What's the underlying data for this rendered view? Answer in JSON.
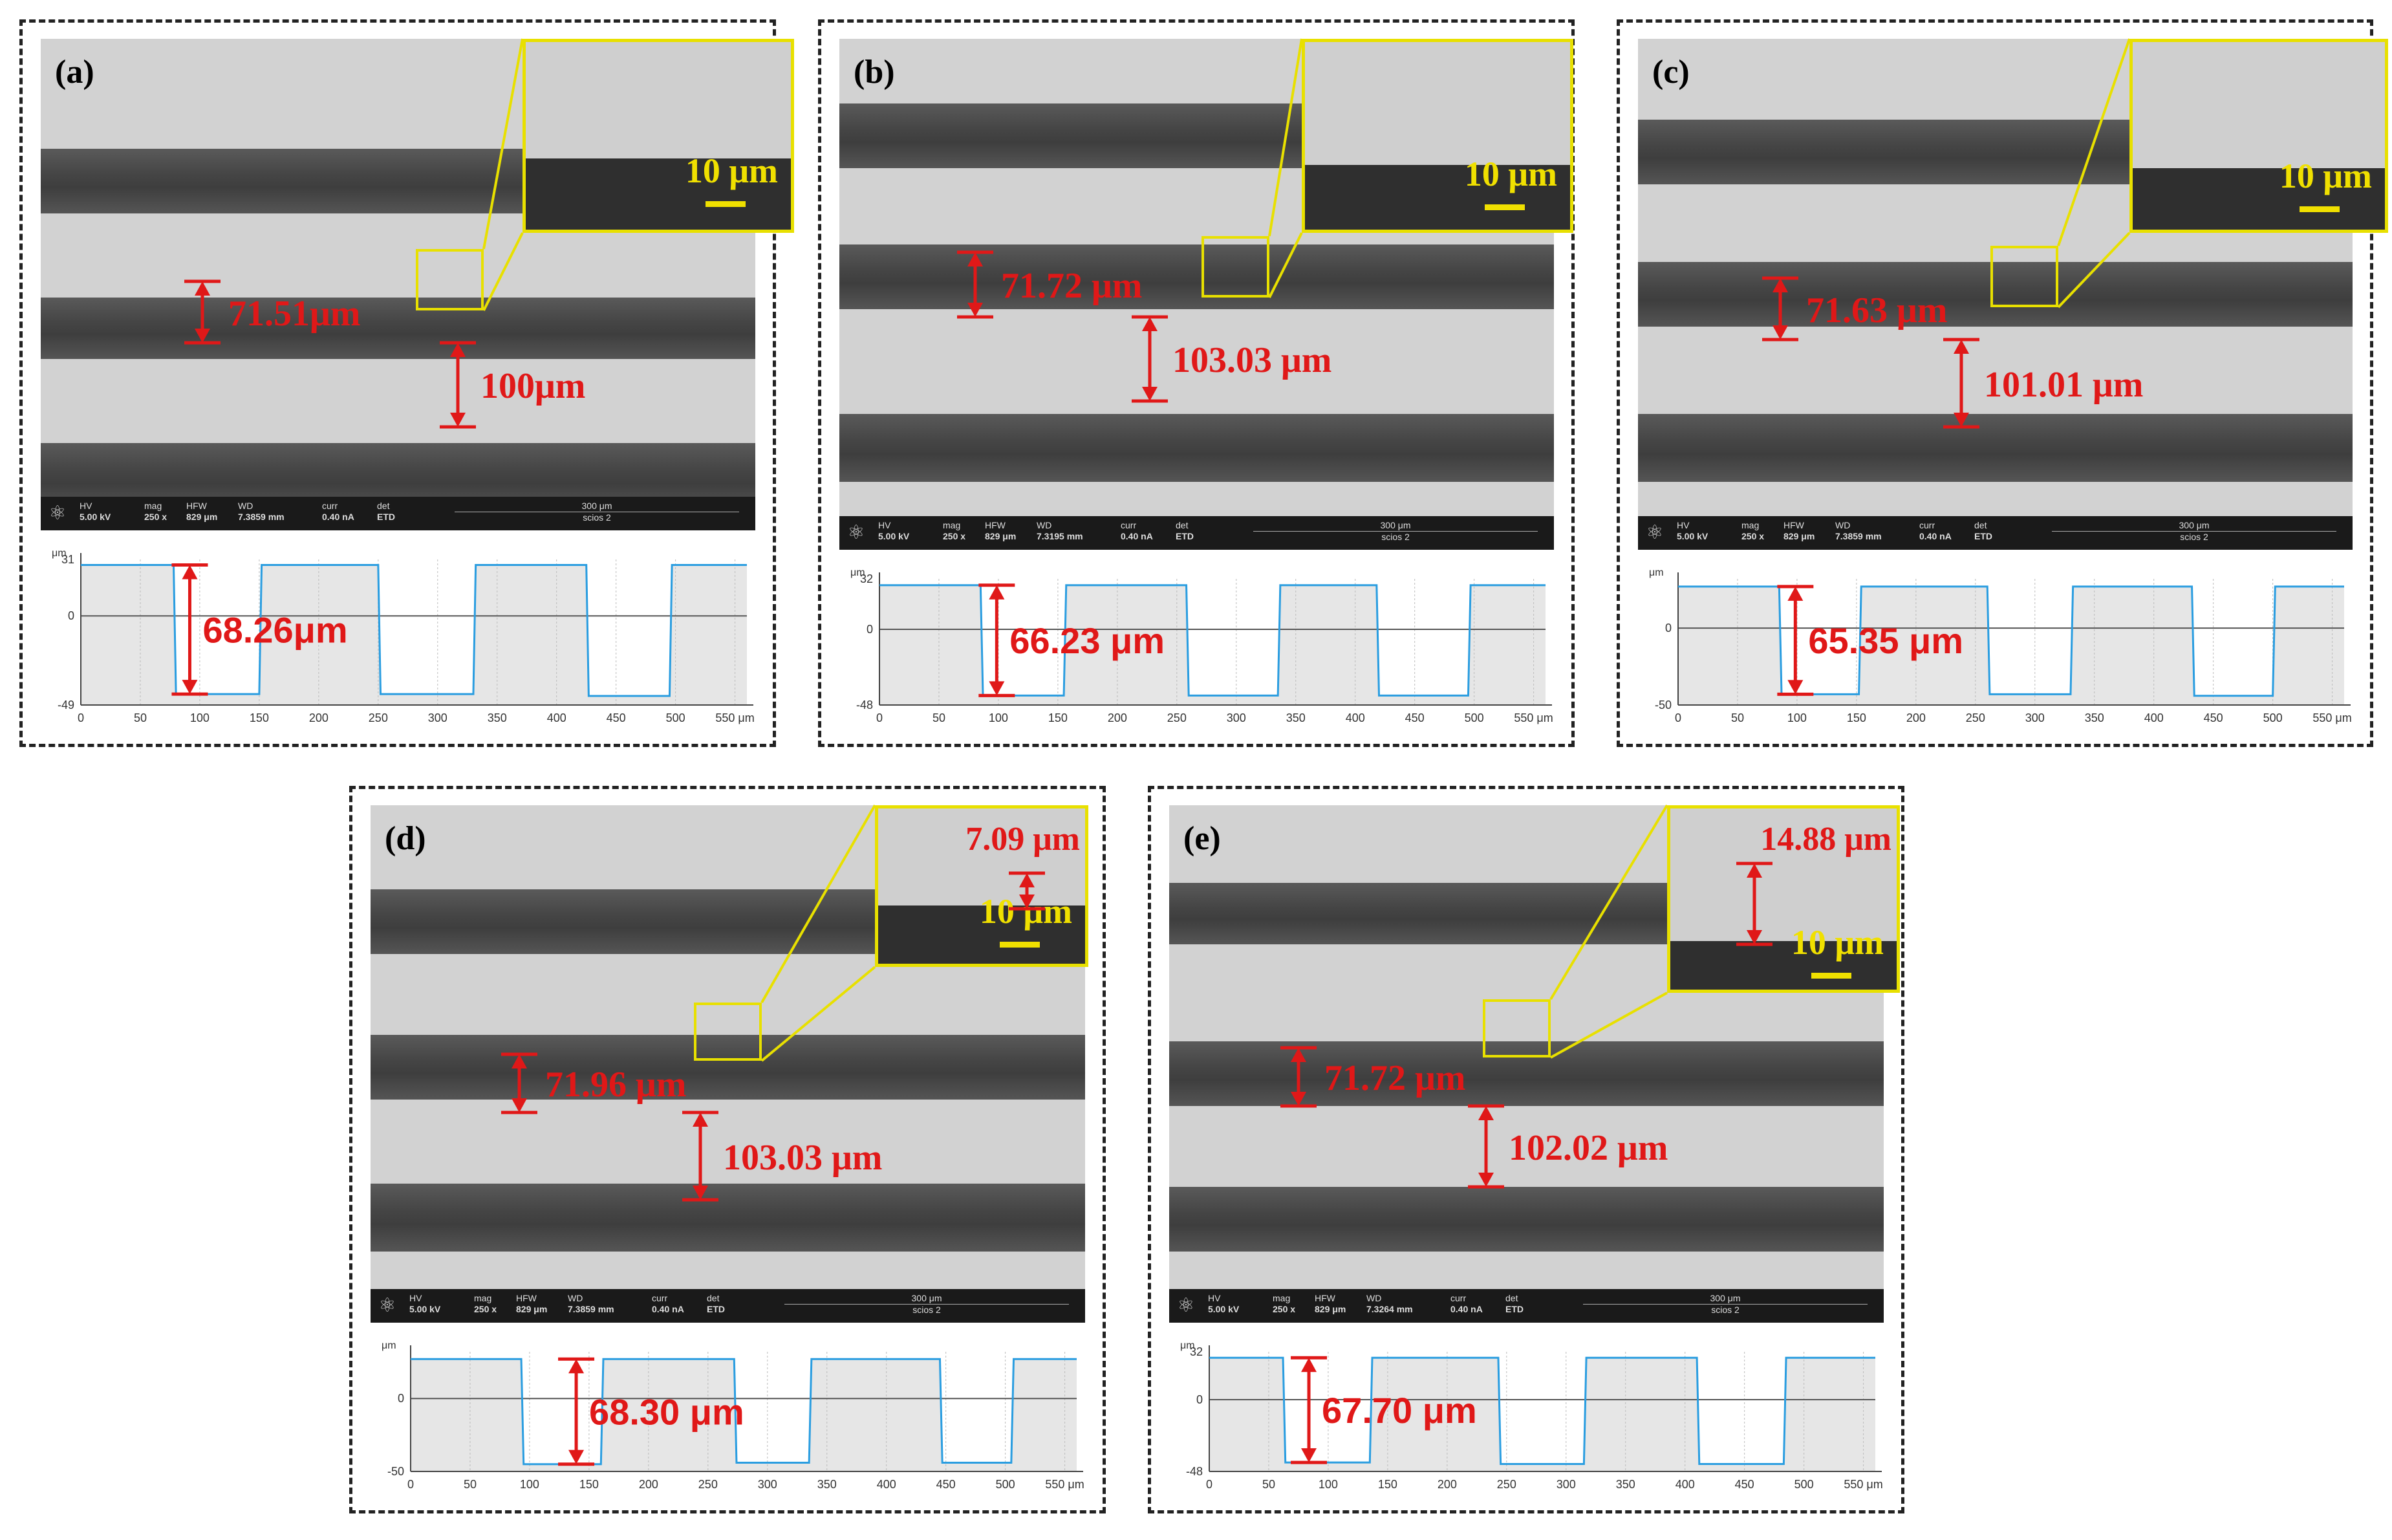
{
  "panels": [
    {
      "tag": "(a)",
      "width_label": "71.51μm",
      "gap_label": "100μm",
      "inset_scale": "10 μm",
      "inset_extra": "",
      "depth_label": "68.26μm",
      "info": {
        "hv": "HV",
        "hv_val": "5.00 kV",
        "mag": "mag",
        "mag_val": "250 x",
        "hfw": "HFW",
        "hfw_val": "829 μm",
        "wd": "WD",
        "wd_val": "7.3859 mm",
        "curr": "curr",
        "curr_val": "0.40 nA",
        "det": "det",
        "det_val": "ETD",
        "bar": "300 μm",
        "inst": "scios 2"
      },
      "chart_data": {
        "type": "line",
        "unit": "μm",
        "yticks": [
          "31",
          "0",
          "-49"
        ],
        "xticks": [
          "0",
          "50",
          "100",
          "150",
          "200",
          "250",
          "300",
          "350",
          "400",
          "450",
          "500",
          "550 μm"
        ],
        "xlim": [
          0,
          560
        ],
        "ylim": [
          -49,
          31
        ],
        "x": [
          0,
          78,
          80,
          150,
          152,
          250,
          252,
          330,
          332,
          425,
          427,
          495,
          497,
          560
        ],
        "y": [
          28,
          28,
          -43,
          -43,
          28,
          28,
          -43,
          -43,
          28,
          28,
          -44,
          -44,
          28,
          28
        ]
      }
    },
    {
      "tag": "(b)",
      "width_label": "71.72 μm",
      "gap_label": "103.03 μm",
      "inset_scale": "10 μm",
      "inset_extra": "",
      "depth_label": "66.23 μm",
      "info": {
        "hv": "HV",
        "hv_val": "5.00 kV",
        "mag": "mag",
        "mag_val": "250 x",
        "hfw": "HFW",
        "hfw_val": "829 μm",
        "wd": "WD",
        "wd_val": "7.3195 mm",
        "curr": "curr",
        "curr_val": "0.40 nA",
        "det": "det",
        "det_val": "ETD",
        "bar": "300 μm",
        "inst": "scios 2"
      },
      "chart_data": {
        "type": "line",
        "unit": "μm",
        "yticks": [
          "32",
          "0",
          "-48"
        ],
        "xticks": [
          "0",
          "50",
          "100",
          "150",
          "200",
          "250",
          "300",
          "350",
          "400",
          "450",
          "500",
          "550 μm"
        ],
        "xlim": [
          0,
          560
        ],
        "ylim": [
          -48,
          32
        ],
        "x": [
          0,
          85,
          87,
          155,
          157,
          258,
          260,
          335,
          337,
          418,
          420,
          495,
          497,
          560
        ],
        "y": [
          28,
          28,
          -42,
          -42,
          28,
          28,
          -42,
          -42,
          28,
          28,
          -42,
          -42,
          28,
          28
        ]
      }
    },
    {
      "tag": "(c)",
      "width_label": "71.63 μm",
      "gap_label": "101.01 μm",
      "inset_scale": "10 μm",
      "inset_extra": "",
      "depth_label": "65.35 μm",
      "info": {
        "hv": "HV",
        "hv_val": "5.00 kV",
        "mag": "mag",
        "mag_val": "250 x",
        "hfw": "HFW",
        "hfw_val": "829 μm",
        "wd": "WD",
        "wd_val": "7.3859 mm",
        "curr": "curr",
        "curr_val": "0.40 nA",
        "det": "det",
        "det_val": "ETD",
        "bar": "300 μm",
        "inst": "scios 2"
      },
      "chart_data": {
        "type": "line",
        "unit": "μm",
        "yticks": [
          "",
          "0",
          "-50"
        ],
        "xticks": [
          "0",
          "50",
          "100",
          "150",
          "200",
          "250",
          "300",
          "350",
          "400",
          "450",
          "500",
          "550 μm"
        ],
        "xlim": [
          0,
          560
        ],
        "ylim": [
          -50,
          32
        ],
        "x": [
          0,
          85,
          87,
          152,
          154,
          260,
          262,
          330,
          332,
          432,
          434,
          500,
          502,
          560
        ],
        "y": [
          27,
          27,
          -43,
          -43,
          27,
          27,
          -43,
          -43,
          27,
          27,
          -44,
          -44,
          27,
          27
        ]
      }
    },
    {
      "tag": "(d)",
      "width_label": "71.96 μm",
      "gap_label": "103.03 μm",
      "inset_scale": "10 μm",
      "inset_extra": "7.09 μm",
      "depth_label": "68.30 μm",
      "info": {
        "hv": "HV",
        "hv_val": "5.00 kV",
        "mag": "mag",
        "mag_val": "250 x",
        "hfw": "HFW",
        "hfw_val": "829 μm",
        "wd": "WD",
        "wd_val": "7.3859 mm",
        "curr": "curr",
        "curr_val": "0.40 nA",
        "det": "det",
        "det_val": "ETD",
        "bar": "300 μm",
        "inst": "scios 2"
      },
      "chart_data": {
        "type": "line",
        "unit": "μm",
        "yticks": [
          "",
          "0",
          "-50"
        ],
        "xticks": [
          "0",
          "50",
          "100",
          "150",
          "200",
          "250",
          "300",
          "350",
          "400",
          "450",
          "500",
          "550 μm"
        ],
        "xlim": [
          0,
          560
        ],
        "ylim": [
          -50,
          32
        ],
        "x": [
          0,
          93,
          95,
          160,
          162,
          272,
          274,
          335,
          337,
          445,
          447,
          505,
          507,
          560
        ],
        "y": [
          27,
          27,
          -45,
          -45,
          27,
          27,
          -44,
          -44,
          27,
          27,
          -44,
          -44,
          27,
          27
        ]
      }
    },
    {
      "tag": "(e)",
      "width_label": "71.72 μm",
      "gap_label": "102.02 μm",
      "inset_scale": "10 μm",
      "inset_extra": "14.88 μm",
      "depth_label": "67.70 μm",
      "info": {
        "hv": "HV",
        "hv_val": "5.00 kV",
        "mag": "mag",
        "mag_val": "250 x",
        "hfw": "HFW",
        "hfw_val": "829 μm",
        "wd": "WD",
        "wd_val": "7.3264 mm",
        "curr": "curr",
        "curr_val": "0.40 nA",
        "det": "det",
        "det_val": "ETD",
        "bar": "300 μm",
        "inst": "scios 2"
      },
      "chart_data": {
        "type": "line",
        "unit": "μm",
        "yticks": [
          "32",
          "0",
          "-48"
        ],
        "xticks": [
          "0",
          "50",
          "100",
          "150",
          "200",
          "250",
          "300",
          "350",
          "400",
          "450",
          "500",
          "550 μm"
        ],
        "xlim": [
          0,
          560
        ],
        "ylim": [
          -48,
          32
        ],
        "x": [
          0,
          62,
          64,
          135,
          137,
          243,
          245,
          315,
          317,
          410,
          412,
          483,
          485,
          560
        ],
        "y": [
          28,
          28,
          -42,
          -42,
          28,
          28,
          -43,
          -43,
          28,
          28,
          -43,
          -43,
          28,
          28
        ]
      }
    }
  ]
}
